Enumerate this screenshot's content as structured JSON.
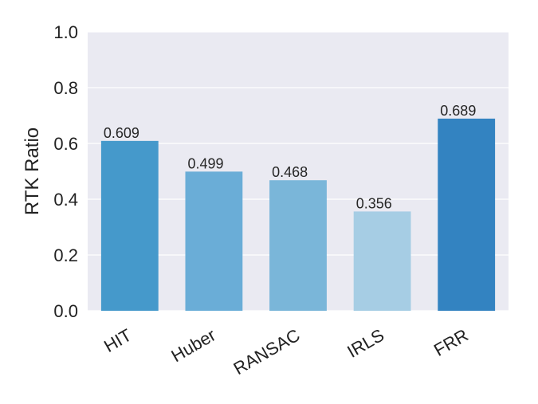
{
  "chart_data": {
    "type": "bar",
    "title": "",
    "xlabel": "",
    "ylabel": "RTK Ratio",
    "ylim": [
      0,
      1.0
    ],
    "yticks": [
      "0.0",
      "0.2",
      "0.4",
      "0.6",
      "0.8",
      "1.0"
    ],
    "categories": [
      "HIT",
      "Huber",
      "RANSAC",
      "IRLS",
      "FRR"
    ],
    "values": [
      0.609,
      0.499,
      0.468,
      0.356,
      0.689
    ],
    "value_labels": [
      "0.609",
      "0.499",
      "0.468",
      "0.356",
      "0.689"
    ],
    "bar_colors": [
      "#4599cb",
      "#6aadd7",
      "#7ab6d9",
      "#a6cde4",
      "#3383c1"
    ],
    "plot_background": "#eaeaf2",
    "grid": true,
    "grid_color": "#ffffff",
    "legend": "none"
  }
}
